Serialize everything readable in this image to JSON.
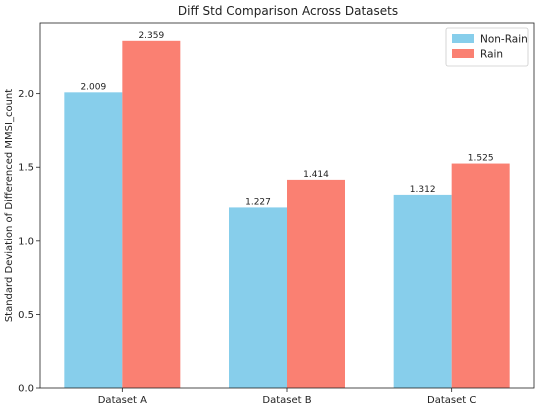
{
  "chart_data": {
    "type": "bar",
    "title": "Diff Std Comparison Across Datasets",
    "xlabel": "",
    "ylabel": "Standard Deviation of Differenced MMSI_count",
    "categories": [
      "Dataset A",
      "Dataset B",
      "Dataset C"
    ],
    "series": [
      {
        "name": "Non-Rain",
        "values": [
          2.009,
          1.227,
          1.312
        ],
        "labels": [
          "2.009",
          "1.227",
          "1.312"
        ],
        "color": "#87CEEB"
      },
      {
        "name": "Rain",
        "values": [
          2.359,
          1.414,
          1.525
        ],
        "labels": [
          "2.359",
          "1.414",
          "1.525"
        ],
        "color": "#FA8072"
      }
    ],
    "ylim": [
      0,
      2.48
    ],
    "yticks": [
      0.0,
      0.5,
      1.0,
      1.5,
      2.0
    ],
    "ytick_labels": [
      "0.0",
      "0.5",
      "1.0",
      "1.5",
      "2.0"
    ],
    "legend_position": "top-right",
    "grid": false
  }
}
